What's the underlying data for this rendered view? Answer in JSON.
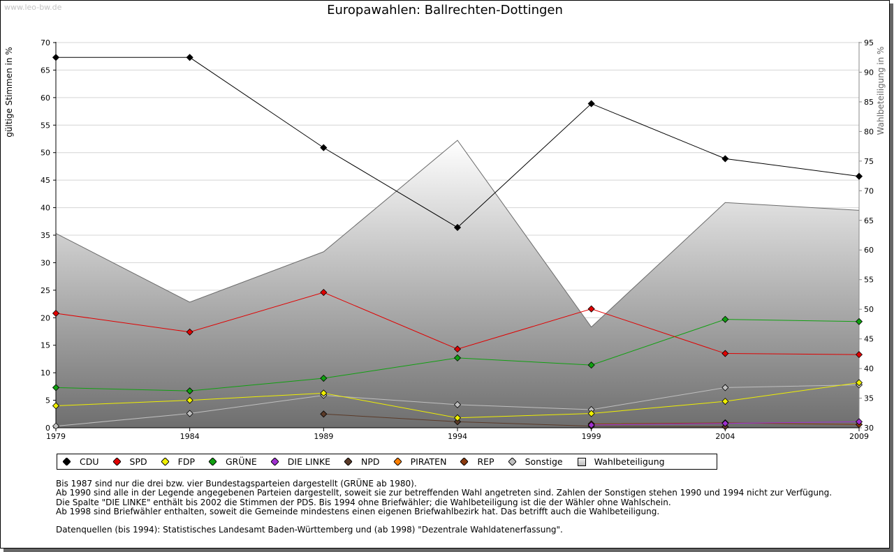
{
  "watermark": "www.leo-bw.de",
  "chart_data": {
    "type": "line",
    "title": "Europawahlen: Ballrechten-Dottingen",
    "ylabel": "gültige Stimmen in %",
    "y2label": "Wahlbeteiligung in %",
    "x": [
      "1979",
      "1984",
      "1989",
      "1994",
      "1999",
      "2004",
      "2009"
    ],
    "ylim": [
      0,
      70
    ],
    "yticks": [
      0,
      5,
      10,
      15,
      20,
      25,
      30,
      35,
      40,
      45,
      50,
      55,
      60,
      65,
      70
    ],
    "y2lim": [
      30,
      95
    ],
    "y2ticks": [
      30,
      35,
      40,
      45,
      50,
      55,
      60,
      65,
      70,
      75,
      80,
      85,
      90,
      95
    ],
    "grid": true,
    "legend_position": "bottom",
    "series": [
      {
        "name": "CDU",
        "color": "#000000",
        "values": [
          67.3,
          67.3,
          50.9,
          36.4,
          58.9,
          48.9,
          45.7
        ]
      },
      {
        "name": "SPD",
        "color": "#e00000",
        "values": [
          20.8,
          17.4,
          24.6,
          14.3,
          21.6,
          13.5,
          13.3
        ]
      },
      {
        "name": "FDP",
        "color": "#f0f000",
        "values": [
          4.0,
          5.0,
          6.3,
          1.8,
          2.6,
          4.8,
          8.2
        ]
      },
      {
        "name": "GRÜNE",
        "color": "#10a010",
        "values": [
          7.3,
          6.7,
          9.0,
          12.7,
          11.4,
          19.7,
          19.3
        ]
      },
      {
        "name": "DIE LINKE",
        "color": "#a030d0",
        "values": [
          null,
          null,
          null,
          null,
          0.5,
          0.8,
          1.1
        ]
      },
      {
        "name": "NPD",
        "color": "#5a3a28",
        "values": [
          null,
          null,
          2.5,
          1.1,
          0.3,
          0.2,
          null
        ]
      },
      {
        "name": "PIRATEN",
        "color": "#ff7f00",
        "values": [
          null,
          null,
          null,
          null,
          null,
          null,
          null
        ]
      },
      {
        "name": "REP",
        "color": "#8b3a0e",
        "values": [
          null,
          null,
          null,
          null,
          0.7,
          0.9,
          0.6
        ]
      },
      {
        "name": "Sonstige",
        "color": "#c0c0c0",
        "values": [
          0.3,
          2.6,
          5.9,
          4.2,
          3.3,
          7.3,
          7.8
        ]
      }
    ],
    "turnout": {
      "name": "Wahlbeteiligung",
      "color": "#808080",
      "axis": "right",
      "values": [
        62.8,
        51.2,
        59.7,
        78.5,
        47.0,
        68.0,
        66.7
      ]
    }
  },
  "notes": [
    "Bis 1987 sind nur die drei bzw. vier Bundestagsparteien dargestellt (GRÜNE ab 1980).",
    "Ab 1990 sind alle in der Legende angegebenen Parteien dargestellt, soweit sie zur betreffenden Wahl angetreten sind. Zahlen der Sonstigen stehen 1990 und 1994 nicht zur Verfügung.",
    "Die Spalte \"DIE LINKE\" enthält bis 2002 die Stimmen der PDS. Bis 1994 ohne Briefwähler; die Wahlbeteiligung ist die der Wähler ohne Wahlschein.",
    "Ab 1998 sind Briefwähler enthalten, soweit die Gemeinde mindestens einen eigenen Briefwahlbezirk hat. Das betrifft auch die Wahlbeteiligung."
  ],
  "source": "Datenquellen (bis 1994): Statistisches Landesamt Baden-Württemberg und (ab 1998) \"Dezentrale Wahldatenerfassung\"."
}
